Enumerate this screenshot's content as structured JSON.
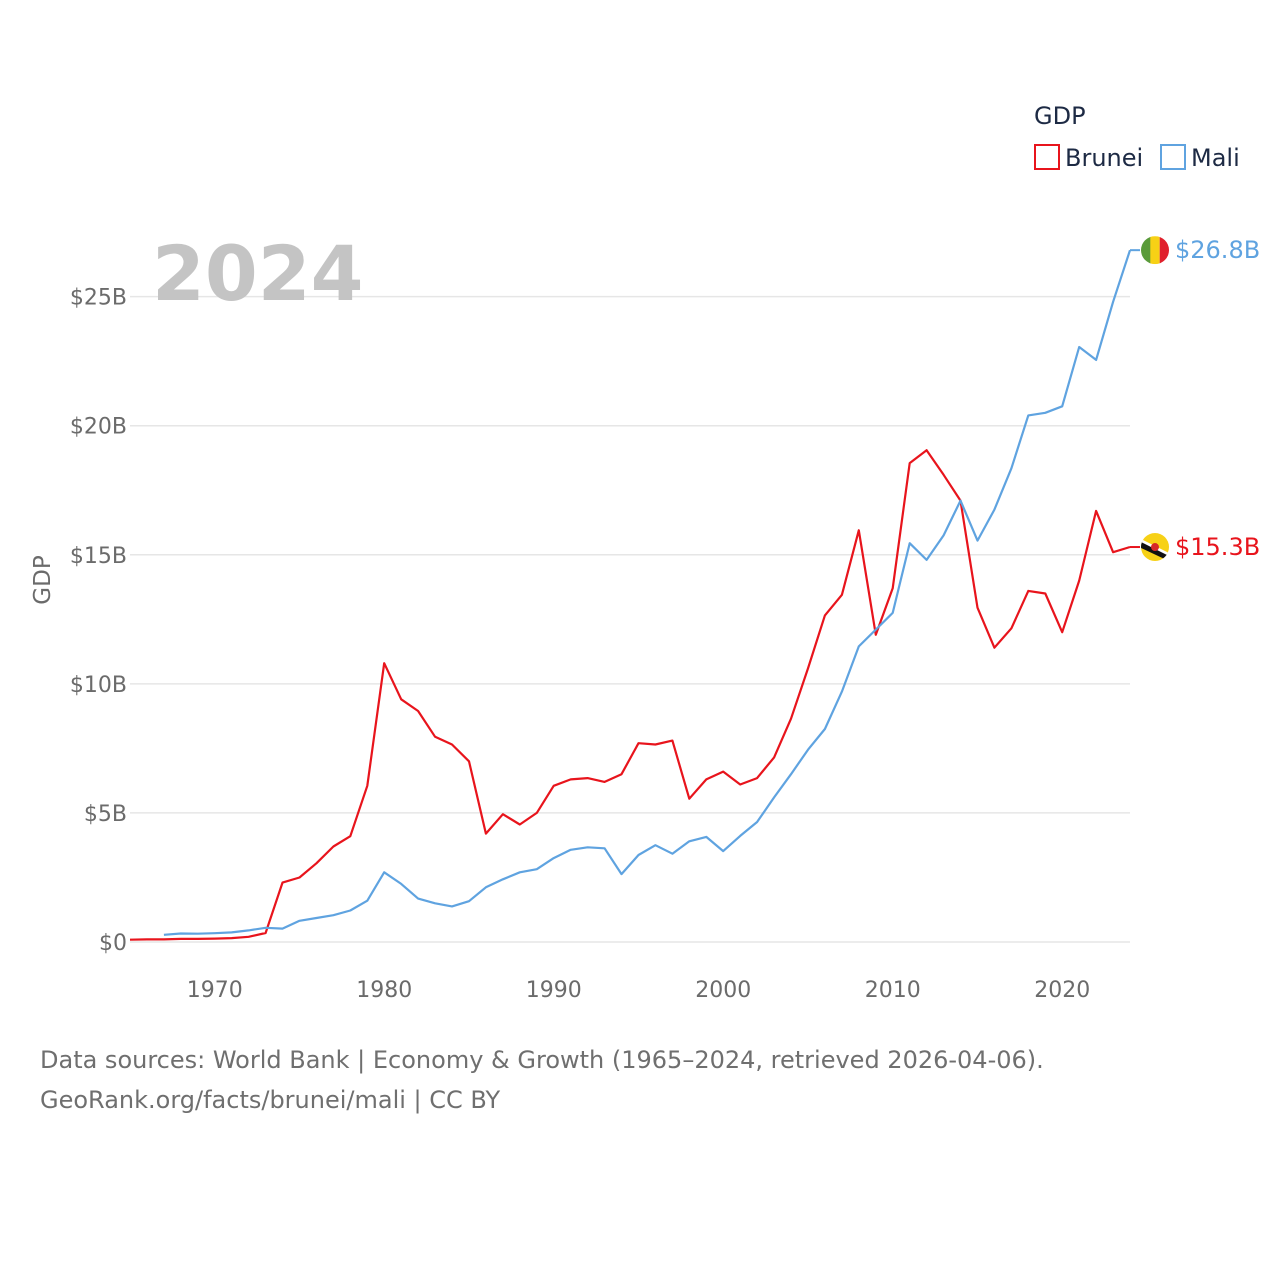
{
  "chart_data": {
    "type": "line",
    "ylabel": "GDP",
    "xlabel": "",
    "year_label": "2024",
    "xlim": [
      1965,
      2024
    ],
    "ylim": [
      0,
      27
    ],
    "x_ticks": [
      1970,
      1980,
      1990,
      2000,
      2010,
      2020
    ],
    "y_ticks": [
      {
        "value": 0,
        "label": "$0"
      },
      {
        "value": 5,
        "label": "$5B"
      },
      {
        "value": 10,
        "label": "$10B"
      },
      {
        "value": 15,
        "label": "$15B"
      },
      {
        "value": 20,
        "label": "$20B"
      },
      {
        "value": 25,
        "label": "$25B"
      }
    ],
    "legend": {
      "title": "GDP",
      "position": "top-right"
    },
    "series": [
      {
        "name": "Brunei",
        "color": "#e8141c",
        "end_label": "$15.3B",
        "flag_icon": "brunei-flag-icon",
        "x": [
          1965,
          1966,
          1967,
          1968,
          1969,
          1970,
          1971,
          1972,
          1973,
          1974,
          1975,
          1976,
          1977,
          1978,
          1979,
          1980,
          1981,
          1982,
          1983,
          1984,
          1985,
          1986,
          1987,
          1988,
          1989,
          1990,
          1991,
          1992,
          1993,
          1994,
          1995,
          1996,
          1997,
          1998,
          1999,
          2000,
          2001,
          2002,
          2003,
          2004,
          2005,
          2006,
          2007,
          2008,
          2009,
          2010,
          2011,
          2012,
          2013,
          2014,
          2015,
          2016,
          2017,
          2018,
          2019,
          2020,
          2021,
          2022,
          2023,
          2024
        ],
        "values": [
          0.09,
          0.1,
          0.1,
          0.12,
          0.12,
          0.13,
          0.15,
          0.2,
          0.35,
          2.3,
          2.5,
          3.05,
          3.7,
          4.1,
          6.05,
          10.8,
          9.4,
          8.95,
          7.95,
          7.65,
          7.0,
          4.2,
          4.95,
          4.55,
          5.0,
          6.05,
          6.3,
          6.35,
          6.2,
          6.5,
          7.7,
          7.65,
          7.8,
          5.55,
          6.3,
          6.6,
          6.1,
          6.35,
          7.15,
          8.65,
          10.6,
          12.65,
          13.45,
          15.95,
          11.9,
          13.7,
          18.55,
          19.05,
          18.1,
          17.1,
          12.95,
          11.4,
          12.15,
          13.6,
          13.5,
          12.0,
          14.0,
          16.7,
          15.1,
          15.3
        ]
      },
      {
        "name": "Mali",
        "color": "#5fa3e0",
        "end_label": "$26.8B",
        "flag_icon": "mali-flag-icon",
        "x": [
          1967,
          1968,
          1969,
          1970,
          1971,
          1972,
          1973,
          1974,
          1975,
          1976,
          1977,
          1978,
          1979,
          1980,
          1981,
          1982,
          1983,
          1984,
          1985,
          1986,
          1987,
          1988,
          1989,
          1990,
          1991,
          1992,
          1993,
          1994,
          1995,
          1996,
          1997,
          1998,
          1999,
          2000,
          2001,
          2002,
          2003,
          2004,
          2005,
          2006,
          2007,
          2008,
          2009,
          2010,
          2011,
          2012,
          2013,
          2014,
          2015,
          2016,
          2017,
          2018,
          2019,
          2020,
          2021,
          2022,
          2023,
          2024
        ],
        "values": [
          0.28,
          0.33,
          0.32,
          0.34,
          0.37,
          0.45,
          0.55,
          0.52,
          0.82,
          0.93,
          1.04,
          1.22,
          1.6,
          2.7,
          2.25,
          1.68,
          1.5,
          1.38,
          1.58,
          2.12,
          2.43,
          2.7,
          2.82,
          3.25,
          3.57,
          3.67,
          3.63,
          2.63,
          3.37,
          3.75,
          3.42,
          3.9,
          4.07,
          3.52,
          4.11,
          4.65,
          5.6,
          6.5,
          7.45,
          8.25,
          9.7,
          11.45,
          12.1,
          12.75,
          15.45,
          14.8,
          15.75,
          17.1,
          15.55,
          16.75,
          18.35,
          20.4,
          20.5,
          20.75,
          23.05,
          22.55,
          24.8,
          26.8
        ]
      }
    ]
  },
  "footer": {
    "line1": "Data sources: World Bank | Economy & Growth (1965–2024, retrieved 2026-04-06).",
    "line2": "GeoRank.org/facts/brunei/mali | CC BY"
  }
}
